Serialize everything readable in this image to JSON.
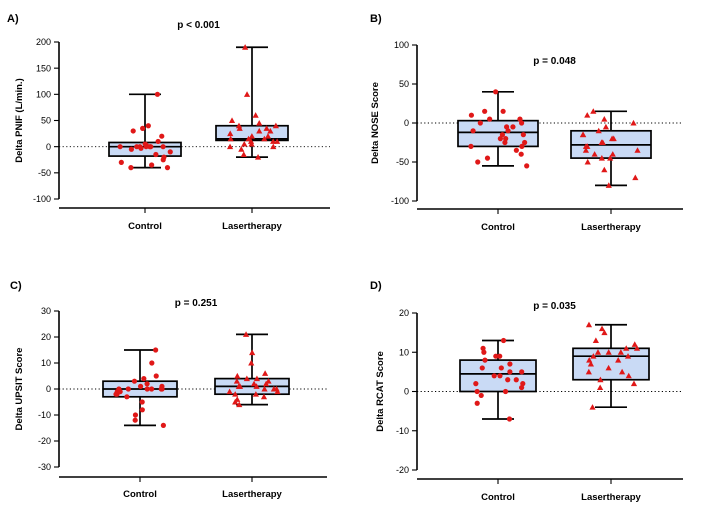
{
  "chart_data": [
    {
      "panel_label": "A)",
      "type": "box",
      "title": "p < 0.001",
      "ylabel": "Delta PNIF (L/min.)",
      "ylim": [
        -100,
        200
      ],
      "yticks": [
        -100,
        -50,
        0,
        50,
        100,
        150,
        200
      ],
      "categories": [
        "Control",
        "Lasertherapy"
      ],
      "series": [
        {
          "name": "Control",
          "marker": "circle",
          "box": {
            "min": -40,
            "q1": -18,
            "median": 0,
            "q3": 8,
            "max": 100
          },
          "points": [
            100,
            40,
            35,
            30,
            20,
            10,
            5,
            3,
            0,
            0,
            0,
            0,
            0,
            0,
            0,
            -3,
            -5,
            -10,
            -15,
            -20,
            -25,
            -30,
            -35,
            -40,
            -40
          ]
        },
        {
          "name": "Lasertherapy",
          "marker": "triangle",
          "box": {
            "min": -20,
            "q1": 12,
            "median": 15,
            "q3": 40,
            "max": 190
          },
          "points": [
            190,
            100,
            60,
            50,
            45,
            40,
            40,
            35,
            35,
            30,
            30,
            25,
            20,
            20,
            15,
            15,
            15,
            10,
            10,
            10,
            5,
            5,
            0,
            0,
            -5,
            -15,
            -20
          ]
        }
      ]
    },
    {
      "panel_label": "B)",
      "type": "box",
      "title": "p = 0.048",
      "ylabel": "Delta NOSE Score",
      "ylim": [
        -100,
        100
      ],
      "yticks": [
        -100,
        -50,
        0,
        50,
        100
      ],
      "categories": [
        "Control",
        "Lasertherapy"
      ],
      "series": [
        {
          "name": "Control",
          "marker": "circle",
          "box": {
            "min": -55,
            "q1": -30,
            "median": -12,
            "q3": 3,
            "max": 40
          },
          "points": [
            40,
            15,
            15,
            10,
            5,
            5,
            0,
            0,
            -5,
            -5,
            -10,
            -10,
            -15,
            -15,
            -20,
            -20,
            -25,
            -25,
            -30,
            -30,
            -35,
            -40,
            -45,
            -50,
            -55
          ]
        },
        {
          "name": "Lasertherapy",
          "marker": "triangle",
          "box": {
            "min": -80,
            "q1": -45,
            "median": -28,
            "q3": -10,
            "max": 15
          },
          "points": [
            15,
            10,
            5,
            0,
            -5,
            -10,
            -15,
            -15,
            -20,
            -20,
            -25,
            -25,
            -30,
            -30,
            -35,
            -35,
            -40,
            -40,
            -45,
            -45,
            -50,
            -60,
            -70,
            -80
          ]
        }
      ]
    },
    {
      "panel_label": "C)",
      "type": "box",
      "title": "p = 0.251",
      "ylabel": "Delta UPSIT Score",
      "ylim": [
        -30,
        30
      ],
      "yticks": [
        -30,
        -20,
        -10,
        0,
        10,
        20,
        30
      ],
      "categories": [
        "Control",
        "Lasertherapy"
      ],
      "series": [
        {
          "name": "Control",
          "marker": "circle",
          "box": {
            "min": -14,
            "q1": -3,
            "median": 0,
            "q3": 3,
            "max": 15
          },
          "points": [
            15,
            10,
            5,
            4,
            3,
            2,
            1,
            1,
            0,
            0,
            0,
            0,
            0,
            0,
            -1,
            -1,
            -2,
            -2,
            -3,
            -5,
            -8,
            -10,
            -12,
            -14
          ]
        },
        {
          "name": "Lasertherapy",
          "marker": "triangle",
          "box": {
            "min": -6,
            "q1": -2,
            "median": 1,
            "q3": 4,
            "max": 21
          },
          "points": [
            21,
            14,
            10,
            6,
            5,
            4,
            4,
            3,
            3,
            2,
            2,
            1,
            1,
            1,
            0,
            0,
            0,
            -1,
            -1,
            -2,
            -2,
            -3,
            -4,
            -5,
            -6
          ]
        }
      ]
    },
    {
      "panel_label": "D)",
      "type": "box",
      "title": "p = 0.035",
      "ylabel": "Delta RCAT Score",
      "ylim": [
        -20,
        20
      ],
      "yticks": [
        -20,
        -10,
        0,
        10,
        20
      ],
      "categories": [
        "Control",
        "Lasertherapy"
      ],
      "series": [
        {
          "name": "Control",
          "marker": "circle",
          "box": {
            "min": -7,
            "q1": 0,
            "median": 4.5,
            "q3": 8,
            "max": 13
          },
          "points": [
            13,
            11,
            10,
            9,
            9,
            8,
            7,
            6,
            6,
            5,
            5,
            4,
            4,
            3,
            3,
            2,
            2,
            1,
            0,
            0,
            -1,
            -3,
            -7
          ]
        },
        {
          "name": "Lasertherapy",
          "marker": "triangle",
          "box": {
            "min": -4,
            "q1": 3,
            "median": 9,
            "q3": 11,
            "max": 17
          },
          "points": [
            17,
            16,
            15,
            13,
            12,
            11,
            11,
            10,
            10,
            10,
            9,
            9,
            8,
            8,
            7,
            6,
            5,
            5,
            4,
            3,
            2,
            1,
            -4
          ]
        }
      ]
    }
  ]
}
